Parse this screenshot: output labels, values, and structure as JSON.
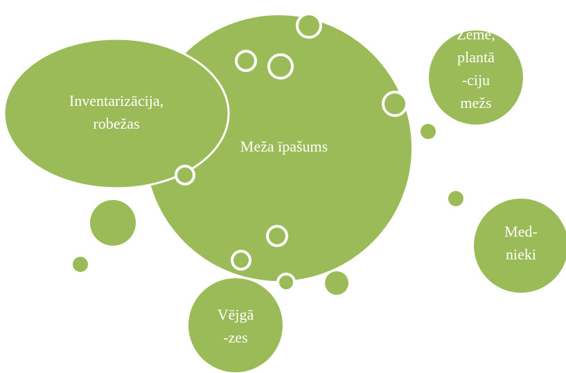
{
  "nodes": [
    {
      "lines": [
        "Meža īpašums"
      ]
    },
    {
      "lines": [
        "Inventarizācija,",
        "robežas"
      ]
    },
    {
      "lines": [
        "Zeme,",
        "plantā",
        "-ciju",
        "mežs"
      ]
    },
    {
      "lines": [
        "Med-",
        "nieki"
      ]
    },
    {
      "lines": [
        "Vējgā",
        "-zes"
      ]
    }
  ]
}
